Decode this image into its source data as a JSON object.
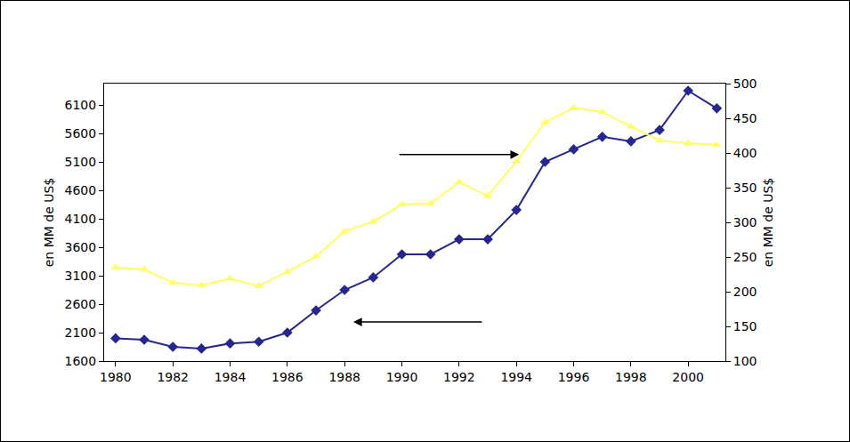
{
  "chart_data": {
    "type": "line",
    "x": [
      1980,
      1981,
      1982,
      1983,
      1984,
      1985,
      1986,
      1987,
      1988,
      1989,
      1990,
      1991,
      1992,
      1993,
      1994,
      1995,
      1996,
      1997,
      1998,
      1999,
      2000,
      2001
    ],
    "xlim": [
      1979.6,
      2001.3
    ],
    "xticks": [
      1980,
      1982,
      1984,
      1986,
      1988,
      1990,
      1992,
      1994,
      1996,
      1998,
      2000
    ],
    "y_label": "en MM de US$",
    "ylim": [
      1600,
      6475
    ],
    "yticks": [
      1600,
      2100,
      2600,
      3100,
      3600,
      4100,
      4600,
      5100,
      5600,
      6100
    ],
    "y2_label": "en MM de US$",
    "y2lim": [
      100,
      500
    ],
    "y2ticks": [
      100,
      150,
      200,
      250,
      300,
      350,
      400,
      450,
      500
    ],
    "grid": false,
    "series": [
      {
        "color": "#26268f",
        "marker": "diamond",
        "axis": "y",
        "values": [
          2000,
          1975,
          1850,
          1820,
          1910,
          1940,
          2100,
          2490,
          2850,
          3070,
          3475,
          3475,
          3740,
          3740,
          4255,
          5100,
          5320,
          5540,
          5460,
          5660,
          6350,
          6040
        ]
      },
      {
        "color": "#ffff66",
        "marker": "triangle-up",
        "axis": "y2",
        "values": [
          235,
          232,
          213,
          209,
          219,
          208,
          229,
          251,
          287,
          301,
          326,
          327,
          358,
          338,
          388,
          444,
          465,
          459,
          438,
          418,
          414,
          412
        ]
      }
    ]
  }
}
